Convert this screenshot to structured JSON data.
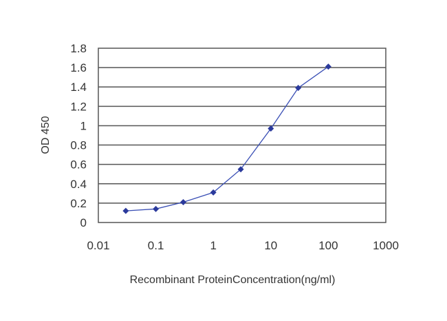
{
  "chart_data": {
    "type": "line",
    "xscale": "log",
    "xlim": [
      0.01,
      1000
    ],
    "ylim": [
      0,
      1.8
    ],
    "xticks": [
      0.01,
      0.1,
      1,
      10,
      100,
      1000
    ],
    "xtick_labels": [
      "0.01",
      "0.1",
      "1",
      "10",
      "100",
      "1000"
    ],
    "yticks": [
      0,
      0.2,
      0.4,
      0.6,
      0.8,
      1,
      1.2,
      1.4,
      1.6,
      1.8
    ],
    "ytick_labels": [
      "0",
      "0.2",
      "0.4",
      "0.6",
      "0.8",
      "1",
      "1.2",
      "1.4",
      "1.6",
      "1.8"
    ],
    "xlabel": "Recombinant ProteinConcentration(ng/ml)",
    "ylabel": "OD 450",
    "grid": "horizontal",
    "series": [
      {
        "x": [
          0.03,
          0.1,
          0.3,
          1,
          3,
          10,
          30,
          100
        ],
        "y": [
          0.12,
          0.14,
          0.21,
          0.31,
          0.55,
          0.97,
          1.39,
          1.61
        ]
      }
    ],
    "colors": {
      "line": "#3a4fb5",
      "marker": "#2b3a9c",
      "grid": "#555555",
      "plot_bg": "#ffffff"
    }
  }
}
